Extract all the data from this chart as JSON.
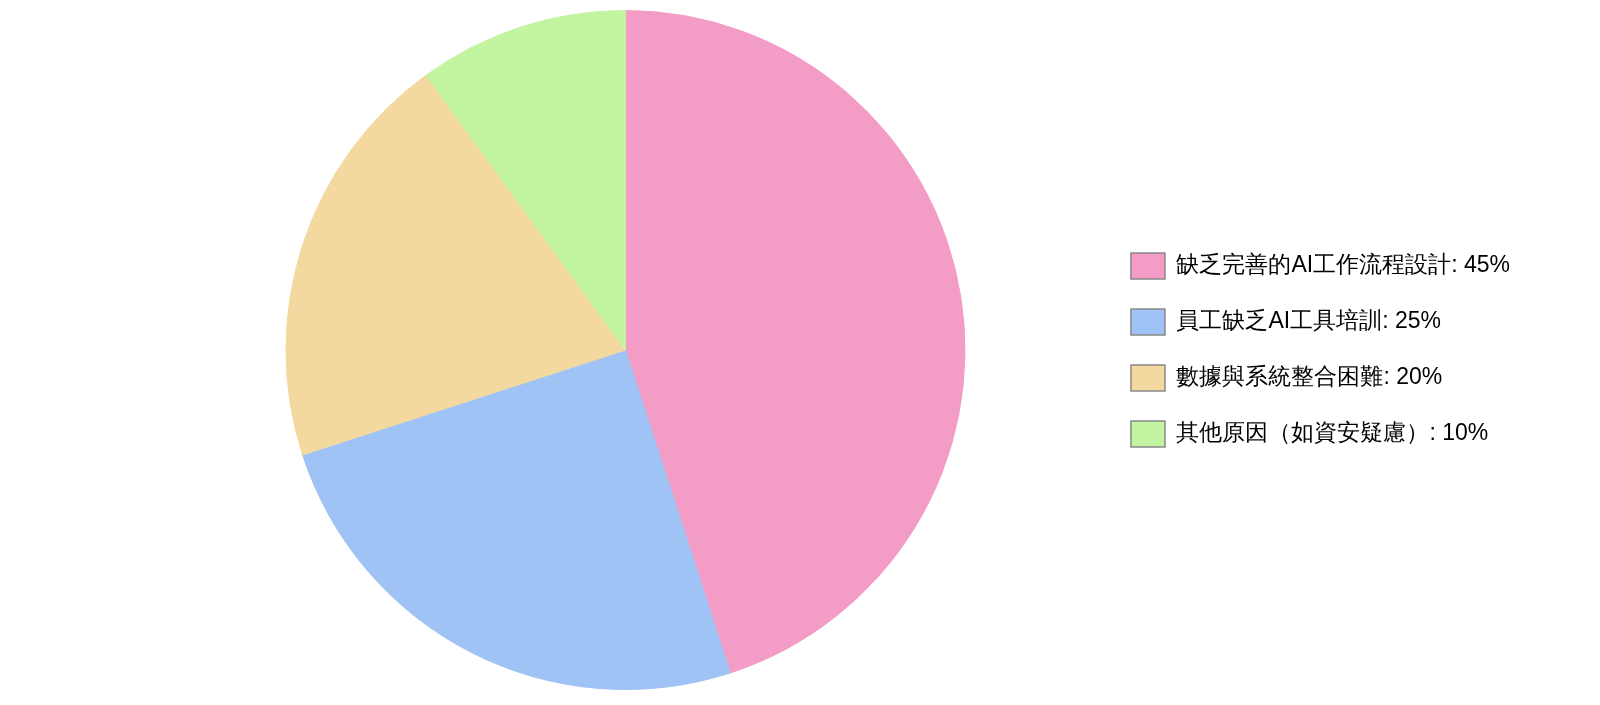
{
  "chart_data": {
    "type": "pie",
    "categories": [
      "缺乏完善的AI工作流程設計: 45%",
      "員工缺乏AI工具培訓: 25%",
      "數據與系統整合困難: 20%",
      "其他原因（如資安疑慮）: 10%"
    ],
    "values": [
      45,
      25,
      20,
      10
    ],
    "colors": [
      "#f39dc6",
      "#9fc3f5",
      "#f3d9a0",
      "#c2f4a2"
    ],
    "legend": "right"
  }
}
